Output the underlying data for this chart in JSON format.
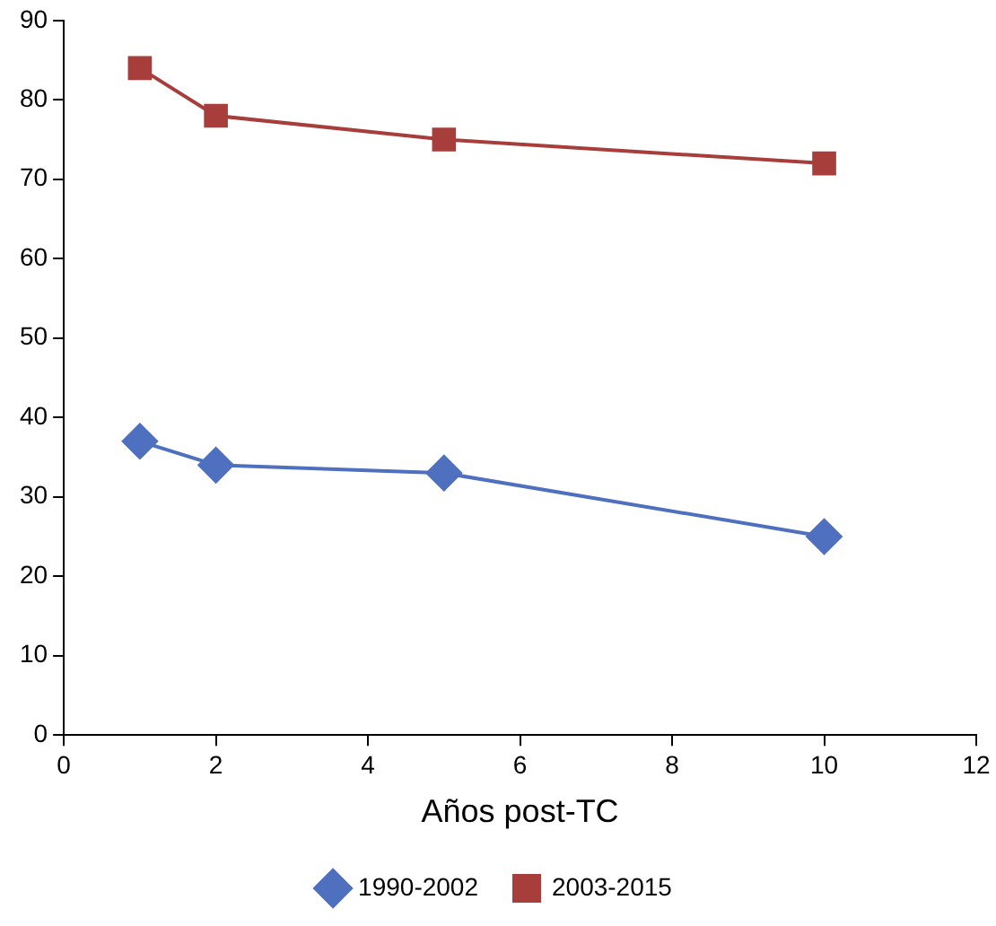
{
  "chart_data": {
    "type": "line",
    "xlabel": "Años post-TC",
    "x": [
      1,
      2,
      5,
      10
    ],
    "series": [
      {
        "name": "1990-2002",
        "color": "#4f6fbf",
        "values": [
          37,
          34,
          33,
          25
        ],
        "marker": "diamond"
      },
      {
        "name": "2003-2015",
        "color": "#a83e3b",
        "values": [
          84,
          78,
          75,
          72
        ],
        "marker": "square"
      }
    ],
    "xlim": [
      0,
      12
    ],
    "xticks": [
      0,
      2,
      4,
      6,
      8,
      10,
      12
    ],
    "ylim": [
      0,
      90
    ],
    "yticks": [
      0,
      10,
      20,
      30,
      40,
      50,
      60,
      70,
      80,
      90
    ],
    "grid": false,
    "legend": "bottom",
    "line_style": "solid"
  }
}
